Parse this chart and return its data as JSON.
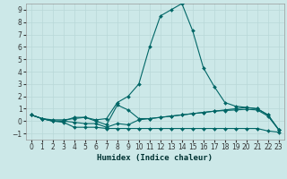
{
  "xlabel": "Humidex (Indice chaleur)",
  "background_color": "#cce8e8",
  "line_color": "#006666",
  "grid_color": "#b8d8d8",
  "xlim": [
    -0.5,
    23.5
  ],
  "ylim": [
    -1.5,
    9.5
  ],
  "yticks": [
    -1,
    0,
    1,
    2,
    3,
    4,
    5,
    6,
    7,
    8,
    9
  ],
  "xticks": [
    0,
    1,
    2,
    3,
    4,
    5,
    6,
    7,
    8,
    9,
    10,
    11,
    12,
    13,
    14,
    15,
    16,
    17,
    18,
    19,
    20,
    21,
    22,
    23
  ],
  "lines": [
    {
      "x": [
        0,
        1,
        2,
        3,
        4,
        5,
        6,
        7,
        8,
        9,
        10,
        11,
        12,
        13,
        14,
        15,
        16,
        17,
        18,
        19,
        20,
        21,
        22,
        23
      ],
      "y": [
        0.5,
        0.2,
        0.1,
        0.1,
        0.2,
        0.3,
        0.1,
        0.2,
        1.5,
        2.0,
        3.0,
        6.0,
        8.5,
        9.0,
        9.5,
        7.3,
        4.3,
        2.8,
        1.5,
        1.2,
        1.1,
        1.0,
        0.5,
        -0.7
      ]
    },
    {
      "x": [
        0,
        1,
        2,
        3,
        4,
        5,
        6,
        7,
        8,
        9,
        10,
        11,
        12,
        13,
        14,
        15,
        16,
        17,
        18,
        19,
        20,
        21,
        22,
        23
      ],
      "y": [
        0.5,
        0.2,
        0.0,
        -0.1,
        -0.5,
        -0.5,
        -0.5,
        -0.6,
        -0.6,
        -0.6,
        -0.6,
        -0.6,
        -0.6,
        -0.6,
        -0.6,
        -0.6,
        -0.6,
        -0.6,
        -0.6,
        -0.6,
        -0.6,
        -0.6,
        -0.8,
        -0.9
      ]
    },
    {
      "x": [
        0,
        1,
        2,
        3,
        4,
        5,
        6,
        7,
        8,
        9,
        10,
        11,
        12,
        13,
        14,
        15,
        16,
        17,
        18,
        19,
        20,
        21,
        22,
        23
      ],
      "y": [
        0.5,
        0.2,
        0.0,
        0.0,
        0.3,
        0.3,
        0.0,
        -0.3,
        1.3,
        0.9,
        0.2,
        0.2,
        0.3,
        0.4,
        0.5,
        0.6,
        0.7,
        0.8,
        0.9,
        1.0,
        1.1,
        1.0,
        0.5,
        -0.7
      ]
    },
    {
      "x": [
        0,
        1,
        2,
        3,
        4,
        5,
        6,
        7,
        8,
        9,
        10,
        11,
        12,
        13,
        14,
        15,
        16,
        17,
        18,
        19,
        20,
        21,
        22,
        23
      ],
      "y": [
        0.5,
        0.2,
        0.0,
        0.0,
        -0.1,
        -0.2,
        -0.2,
        -0.5,
        -0.2,
        -0.3,
        0.1,
        0.2,
        0.3,
        0.4,
        0.5,
        0.6,
        0.7,
        0.8,
        0.85,
        0.9,
        0.95,
        0.9,
        0.4,
        -0.7
      ]
    }
  ]
}
